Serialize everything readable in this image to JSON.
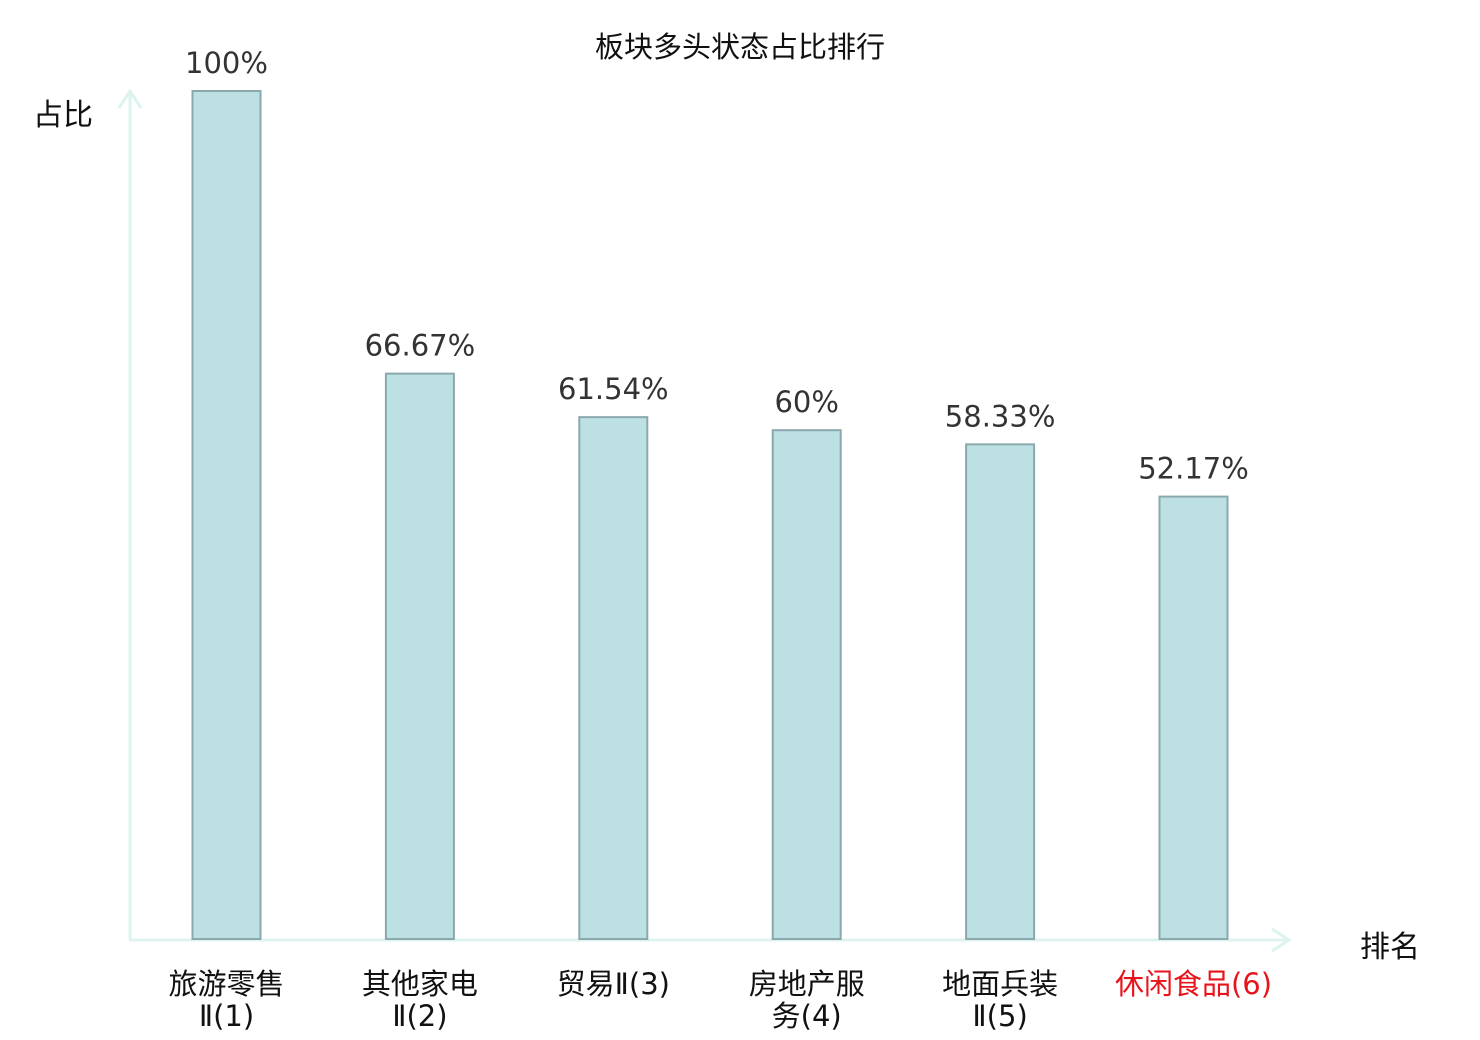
{
  "chart_data": {
    "type": "bar",
    "title": "板块多头状态占比排行",
    "xlabel": "排名",
    "ylabel": "占比",
    "ylim": [
      0,
      100
    ],
    "grid": false,
    "categories": [
      [
        "旅游零售",
        "Ⅱ(1)"
      ],
      [
        "其他家电",
        "Ⅱ(2)"
      ],
      [
        "贸易Ⅱ(3)"
      ],
      [
        "房地产服",
        "务(4)"
      ],
      [
        "地面兵装",
        "Ⅱ(5)"
      ],
      [
        "休闲食品(6)"
      ]
    ],
    "values": [
      100,
      66.67,
      61.54,
      60,
      58.33,
      52.17
    ],
    "value_labels": [
      "100%",
      "66.67%",
      "61.54%",
      "60%",
      "58.33%",
      "52.17%"
    ],
    "highlight_index": 5,
    "colors": {
      "bar_fill": "#bde0e3",
      "bar_stroke": "#8aa8ad",
      "axis": "#ddf3f0",
      "text": "#111111",
      "value_text": "#333333",
      "highlight": "#e8141c"
    }
  }
}
